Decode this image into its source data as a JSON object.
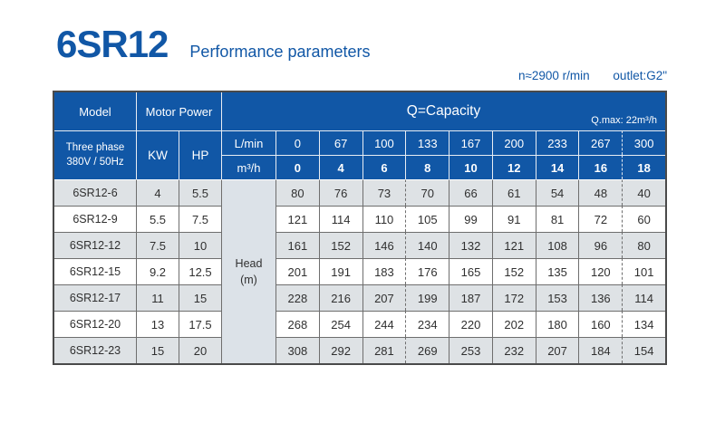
{
  "page": {
    "model_series": "6SR12",
    "subtitle": "Performance parameters",
    "speed_note": "n≈2900 r/min",
    "outlet_note": "outlet:G2\"",
    "accent_color": "#1157a6",
    "row_shade_color": "#dee2e5",
    "head_column_color": "#dce2e8"
  },
  "table": {
    "headers": {
      "model": "Model",
      "motor_power": "Motor Power",
      "capacity": "Q=Capacity",
      "qmax": "Q.max: 22m³/h",
      "phase": "Three phase\n380V / 50Hz",
      "kw": "KW",
      "hp": "HP",
      "lmin": "L/min",
      "m3h": "m³/h",
      "head": "Head\n(m)"
    },
    "lmin_values": [
      "0",
      "67",
      "100",
      "133",
      "167",
      "200",
      "233",
      "267",
      "300"
    ],
    "m3h_values": [
      "0",
      "4",
      "6",
      "8",
      "10",
      "12",
      "14",
      "16",
      "18"
    ],
    "rows": [
      {
        "model": "6SR12-6",
        "kw": "4",
        "hp": "5.5",
        "head": [
          "80",
          "76",
          "73",
          "70",
          "66",
          "61",
          "54",
          "48",
          "40"
        ]
      },
      {
        "model": "6SR12-9",
        "kw": "5.5",
        "hp": "7.5",
        "head": [
          "121",
          "114",
          "110",
          "105",
          "99",
          "91",
          "81",
          "72",
          "60"
        ]
      },
      {
        "model": "6SR12-12",
        "kw": "7.5",
        "hp": "10",
        "head": [
          "161",
          "152",
          "146",
          "140",
          "132",
          "121",
          "108",
          "96",
          "80"
        ]
      },
      {
        "model": "6SR12-15",
        "kw": "9.2",
        "hp": "12.5",
        "head": [
          "201",
          "191",
          "183",
          "176",
          "165",
          "152",
          "135",
          "120",
          "101"
        ]
      },
      {
        "model": "6SR12-17",
        "kw": "11",
        "hp": "15",
        "head": [
          "228",
          "216",
          "207",
          "199",
          "187",
          "172",
          "153",
          "136",
          "114"
        ]
      },
      {
        "model": "6SR12-20",
        "kw": "13",
        "hp": "17.5",
        "head": [
          "268",
          "254",
          "244",
          "234",
          "220",
          "202",
          "180",
          "160",
          "134"
        ]
      },
      {
        "model": "6SR12-23",
        "kw": "15",
        "hp": "20",
        "head": [
          "308",
          "292",
          "281",
          "269",
          "253",
          "232",
          "207",
          "184",
          "154"
        ]
      }
    ]
  }
}
